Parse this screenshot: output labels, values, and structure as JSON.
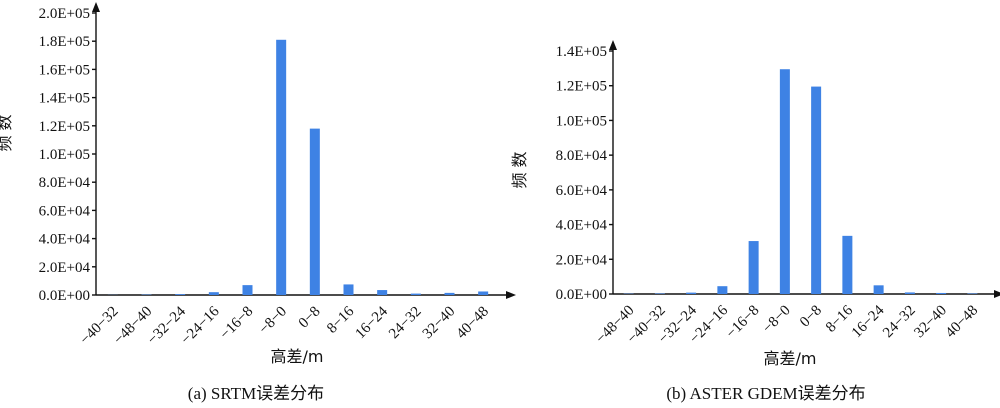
{
  "chart_data": [
    {
      "type": "bar",
      "caption": "(a) SRTM误差分布",
      "xlabel": "高差/m",
      "ylabel": "频 数",
      "ylim": [
        0,
        200000
      ],
      "yticks": [
        "0.0E+00",
        "2.0E+04",
        "4.0E+04",
        "6.0E+04",
        "8.0E+04",
        "1.0E+05",
        "1.2E+05",
        "1.4E+05",
        "1.6E+05",
        "1.8E+05",
        "2.0E+05"
      ],
      "categories": [
        "−40−32",
        "−48−40",
        "−32−24",
        "−24−16",
        "−16−8",
        "−8−0",
        "0−8",
        "8−16",
        "16−24",
        "24−32",
        "32−40",
        "40−48"
      ],
      "values": [
        100,
        300,
        600,
        2000,
        7000,
        181000,
        118000,
        7500,
        3500,
        1000,
        1500,
        2500
      ],
      "grid": false,
      "legend": "none"
    },
    {
      "type": "bar",
      "caption": "(b) ASTER GDEM误差分布",
      "xlabel": "高差/m",
      "ylabel": "频 数",
      "ylim": [
        0,
        140000
      ],
      "yticks": [
        "0.0E+00",
        "2.0E+04",
        "4.0E+04",
        "6.0E+04",
        "8.0E+04",
        "1.0E+05",
        "1.2E+05",
        "1.4E+05"
      ],
      "categories": [
        "−48−40",
        "−40−32",
        "−32−24",
        "−24−16",
        "−16−8",
        "−8−0",
        "0−8",
        "8−16",
        "16−24",
        "24−32",
        "32−40",
        "40−48"
      ],
      "values": [
        200,
        300,
        800,
        4500,
        30500,
        129500,
        119500,
        33500,
        5000,
        900,
        600,
        300
      ],
      "grid": false,
      "legend": "none"
    }
  ]
}
